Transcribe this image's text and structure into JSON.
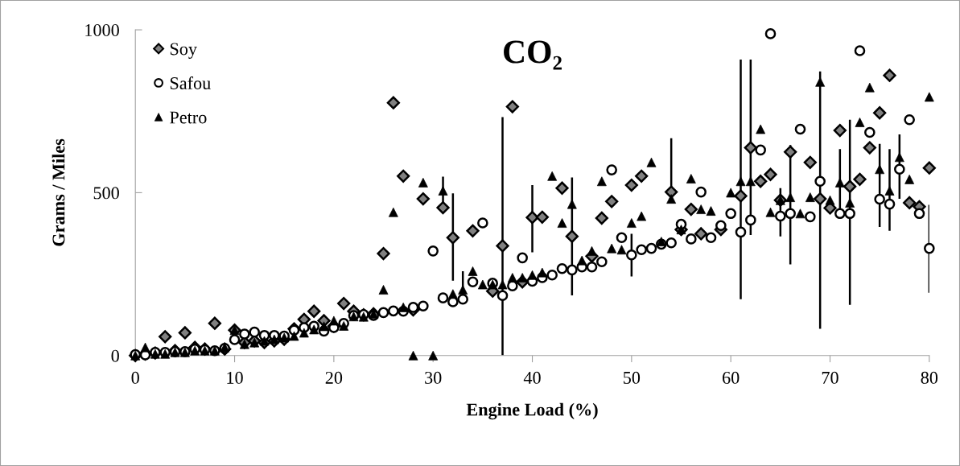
{
  "chart_data": {
    "type": "scatter",
    "title": "CO₂",
    "xlabel": "Engine Load (%)",
    "ylabel": "Grams / Miles",
    "xlim": [
      0,
      80
    ],
    "xticks": [
      0,
      10,
      20,
      30,
      40,
      50,
      60,
      70,
      80
    ],
    "ylim": [
      0,
      1000
    ],
    "yticks": [
      0,
      500,
      1000
    ],
    "grid": false,
    "legend": "top left",
    "x": [
      0,
      1,
      2,
      3,
      4,
      5,
      6,
      7,
      8,
      9,
      10,
      11,
      12,
      13,
      14,
      15,
      16,
      17,
      18,
      19,
      20,
      21,
      22,
      23,
      24,
      25,
      26,
      27,
      28,
      29,
      30,
      31,
      32,
      33,
      34,
      35,
      36,
      37,
      38,
      39,
      40,
      41,
      42,
      43,
      44,
      45,
      46,
      47,
      48,
      49,
      50,
      51,
      52,
      53,
      54,
      55,
      56,
      57,
      58,
      59,
      60,
      61,
      62,
      63,
      64,
      65,
      66,
      67,
      68,
      69,
      70,
      71,
      72,
      73,
      74,
      75,
      76,
      77,
      78,
      79,
      80
    ],
    "series": [
      {
        "name": "Soy",
        "color": "#808080",
        "marker": "diamond",
        "values": [
          0,
          5,
          8,
          58,
          15,
          70,
          25,
          20,
          99,
          20,
          78,
          40,
          45,
          40,
          45,
          50,
          82,
          111,
          136,
          107,
          90,
          160,
          136,
          125,
          128,
          313,
          776,
          551,
          140,
          481,
          null,
          454,
          362,
          null,
          383,
          null,
          198,
          337,
          764,
          226,
          424,
          425,
          null,
          514,
          366,
          null,
          305,
          422,
          473,
          null,
          523,
          551,
          null,
          null,
          502,
          387,
          449,
          374,
          null,
          387,
          null,
          490,
          638,
          535,
          556,
          477,
          625,
          null,
          593,
          481,
          453,
          691,
          519,
          541,
          638,
          745,
          860,
          null,
          469,
          457,
          576
        ],
        "errors": [
          null,
          null,
          null,
          null,
          null,
          null,
          null,
          null,
          null,
          null,
          null,
          null,
          null,
          null,
          null,
          null,
          null,
          null,
          null,
          null,
          null,
          null,
          null,
          null,
          null,
          null,
          null,
          null,
          null,
          null,
          null,
          null,
          [
            230,
            498
          ],
          null,
          null,
          null,
          null,
          [
            0,
            732
          ],
          null,
          null,
          [
            317,
            523
          ],
          null,
          null,
          null,
          null,
          null,
          null,
          null,
          null,
          null,
          null,
          null,
          null,
          null,
          [
            481,
            667
          ],
          null,
          null,
          null,
          null,
          null,
          null,
          null,
          [
            370,
            909
          ],
          null,
          null,
          null,
          null,
          null,
          null,
          null,
          null,
          null,
          null,
          null,
          null,
          null,
          null,
          null,
          null,
          null,
          null
        ]
      },
      {
        "name": "Safou",
        "color": "#ffffff",
        "marker": "circle",
        "values": [
          3,
          2,
          10,
          10,
          12,
          12,
          20,
          18,
          15,
          22,
          49,
          66,
          72,
          62,
          62,
          60,
          78,
          86,
          90,
          75,
          86,
          99,
          123,
          126,
          123,
          132,
          137,
          136,
          148,
          152,
          321,
          177,
          165,
          173,
          226,
          407,
          222,
          184,
          214,
          300,
          228,
          239,
          247,
          267,
          263,
          272,
          272,
          288,
          570,
          362,
          309,
          325,
          329,
          342,
          346,
          403,
          358,
          502,
          362,
          399,
          436,
          379,
          416,
          631,
          988,
          428,
          436,
          695,
          426,
          535,
          null,
          436,
          436,
          936,
          685,
          480,
          465,
          572,
          724,
          436,
          329
        ],
        "errors": [
          null,
          null,
          null,
          null,
          null,
          null,
          null,
          null,
          null,
          null,
          null,
          null,
          null,
          null,
          null,
          null,
          null,
          null,
          null,
          null,
          null,
          null,
          null,
          null,
          null,
          null,
          null,
          null,
          null,
          null,
          null,
          null,
          null,
          null,
          null,
          null,
          null,
          null,
          null,
          null,
          null,
          null,
          null,
          null,
          null,
          null,
          null,
          null,
          null,
          null,
          [
            243,
            374
          ],
          null,
          null,
          null,
          null,
          null,
          null,
          null,
          null,
          null,
          null,
          [
            173,
            909
          ],
          null,
          null,
          null,
          [
            366,
            514
          ],
          [
            280,
            646
          ],
          null,
          null,
          null,
          null,
          null,
          null,
          null,
          null,
          null,
          null,
          null,
          null,
          null,
          [
            193,
            463
          ]
        ]
      },
      {
        "name": "Petro",
        "color": "#000000",
        "marker": "triangle",
        "values": [
          0,
          25,
          5,
          5,
          10,
          10,
          15,
          15,
          15,
          25,
          78,
          35,
          40,
          45,
          50,
          55,
          60,
          70,
          80,
          90,
          107,
          91,
          120,
          119,
          128,
          202,
          440,
          148,
          0,
          531,
          0,
          506,
          189,
          202,
          259,
          218,
          218,
          218,
          239,
          239,
          247,
          255,
          551,
          407,
          465,
          292,
          321,
          535,
          329,
          325,
          407,
          428,
          593,
          350,
          481,
          387,
          543,
          449,
          444,
          null,
          500,
          535,
          535,
          695,
          440,
          477,
          486,
          436,
          486,
          840,
          477,
          531,
          469,
          716,
          823,
          572,
          506,
          609,
          541,
          null,
          794
        ],
        "errors": [
          null,
          null,
          null,
          null,
          null,
          null,
          null,
          null,
          null,
          null,
          null,
          null,
          null,
          null,
          null,
          null,
          null,
          null,
          null,
          null,
          null,
          null,
          null,
          null,
          null,
          null,
          null,
          null,
          null,
          null,
          null,
          [
            454,
            549
          ],
          null,
          [
            193,
            259
          ],
          null,
          null,
          null,
          null,
          null,
          null,
          null,
          null,
          null,
          null,
          [
            185,
            547
          ],
          null,
          null,
          null,
          null,
          null,
          null,
          null,
          null,
          null,
          null,
          null,
          null,
          null,
          null,
          null,
          null,
          null,
          null,
          null,
          null,
          null,
          null,
          null,
          null,
          [
            82,
            872
          ],
          null,
          [
            436,
            634
          ],
          [
            156,
            724
          ],
          null,
          null,
          [
            395,
            650
          ],
          [
            383,
            634
          ],
          [
            481,
            679
          ],
          null,
          null,
          null
        ]
      }
    ]
  }
}
